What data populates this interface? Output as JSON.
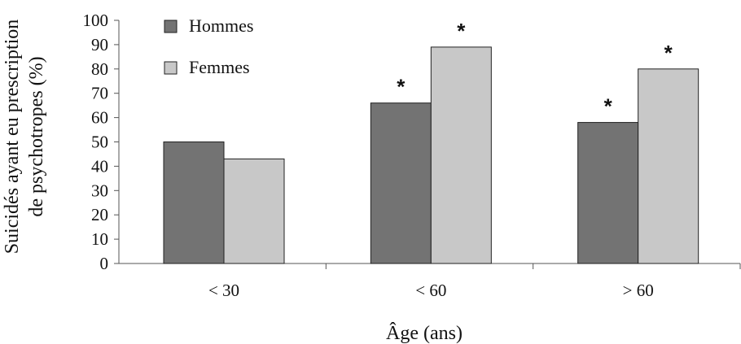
{
  "chart_data": {
    "type": "bar",
    "categories": [
      "< 30",
      "< 60",
      "> 60"
    ],
    "series": [
      {
        "name": "Hommes",
        "values": [
          50,
          66,
          58
        ],
        "color": "#737373"
      },
      {
        "name": "Femmes",
        "values": [
          43,
          89,
          80
        ],
        "color": "#c8c8c8"
      }
    ],
    "ylim": [
      0,
      100
    ],
    "yticks": [
      0,
      10,
      20,
      30,
      40,
      50,
      60,
      70,
      80,
      90,
      100
    ],
    "xlabel": "Âge (ans)",
    "ylabel_lines": [
      "Suicidés ayant eu prescription",
      "de  psychotropes (%)"
    ],
    "annotations": [
      {
        "category": "< 60",
        "series": "Hommes",
        "text": "*"
      },
      {
        "category": "< 60",
        "series": "Femmes",
        "text": "*"
      },
      {
        "category": "> 60",
        "series": "Hommes",
        "text": "*"
      },
      {
        "category": "> 60",
        "series": "Femmes",
        "text": "*"
      }
    ],
    "legend_position": "top-left",
    "grid": false
  }
}
